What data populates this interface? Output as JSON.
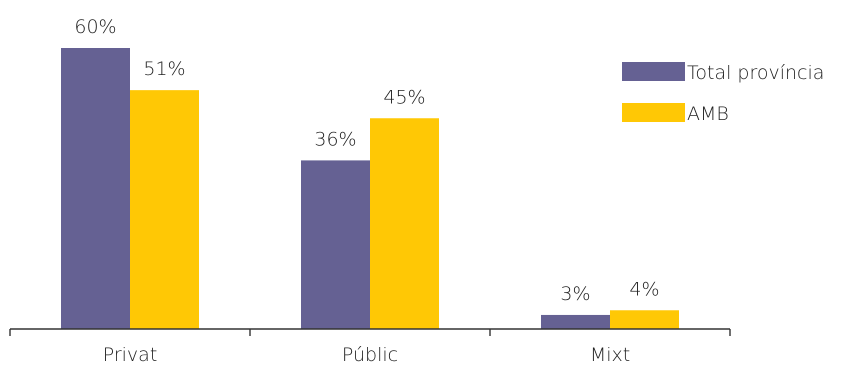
{
  "chart_data": {
    "type": "bar",
    "title": "",
    "xlabel": "",
    "ylabel": "",
    "categories": [
      "Privat",
      "Públic",
      "Mixt"
    ],
    "series": [
      {
        "name": "Total província",
        "color": "#656193",
        "values": [
          60,
          36,
          3
        ],
        "labels": [
          "60%",
          "36%",
          "3%"
        ]
      },
      {
        "name": "AMB",
        "color": "#ffc805",
        "values": [
          51,
          45,
          4
        ],
        "labels": [
          "51%",
          "45%",
          "4%"
        ]
      }
    ],
    "ylim": [
      0,
      60
    ],
    "grid": false,
    "legend": "top-right"
  }
}
